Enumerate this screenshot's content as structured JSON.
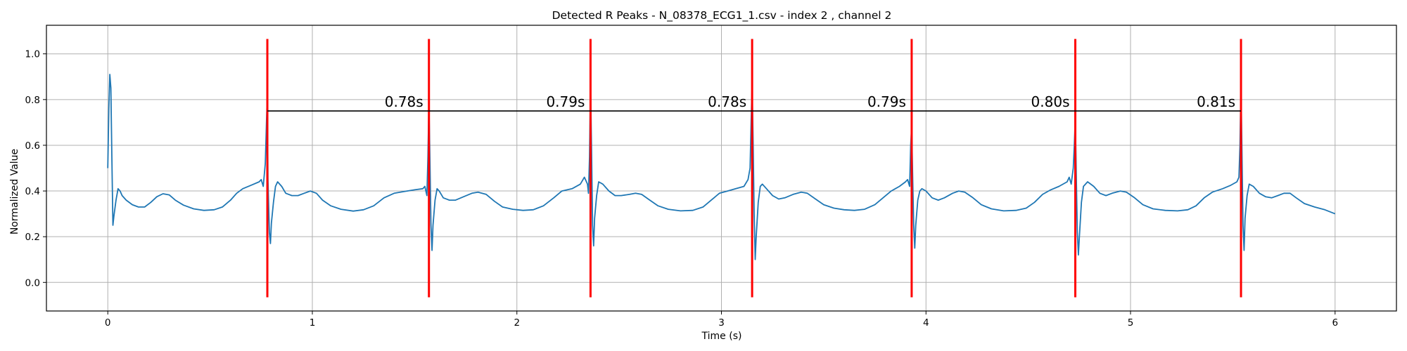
{
  "chart_data": {
    "type": "line",
    "title": "Detected R Peaks - N_08378_ECG1_1.csv - index 2 , channel 2",
    "xlabel": "Time (s)",
    "ylabel": "Normalized Value",
    "xlim": [
      -0.3,
      6.3
    ],
    "ylim": [
      -0.125,
      1.125
    ],
    "x_ticks": [
      "0",
      "1",
      "2",
      "3",
      "4",
      "5",
      "6"
    ],
    "y_ticks": [
      "0.0",
      "0.2",
      "0.4",
      "0.6",
      "0.8",
      "1.0"
    ],
    "grid": true,
    "colors": {
      "signal": "#1f77b4",
      "peaks": "#ff0000",
      "intervals": "#000000"
    },
    "r_peaks": [
      0.78,
      1.57,
      2.36,
      3.15,
      3.93,
      4.73,
      5.54
    ],
    "rr_intervals": [
      {
        "start": 0.78,
        "end": 1.57,
        "label": "0.78s"
      },
      {
        "start": 1.57,
        "end": 2.36,
        "label": "0.79s"
      },
      {
        "start": 2.36,
        "end": 3.15,
        "label": "0.78s"
      },
      {
        "start": 3.15,
        "end": 3.93,
        "label": "0.79s"
      },
      {
        "start": 3.93,
        "end": 4.73,
        "label": "0.80s"
      },
      {
        "start": 4.73,
        "end": 5.54,
        "label": "0.81s"
      }
    ],
    "interval_line_y": 0.75,
    "peak_marker_range": [
      -0.065,
      1.065
    ],
    "series": [
      {
        "values": [
          [
            0.0,
            0.5
          ],
          [
            0.005,
            0.76
          ],
          [
            0.01,
            0.91
          ],
          [
            0.015,
            0.85
          ],
          [
            0.02,
            0.55
          ],
          [
            0.025,
            0.25
          ],
          [
            0.03,
            0.29
          ],
          [
            0.04,
            0.36
          ],
          [
            0.05,
            0.41
          ],
          [
            0.06,
            0.4
          ],
          [
            0.07,
            0.38
          ],
          [
            0.09,
            0.36
          ],
          [
            0.12,
            0.34
          ],
          [
            0.15,
            0.33
          ],
          [
            0.18,
            0.33
          ],
          [
            0.21,
            0.35
          ],
          [
            0.24,
            0.375
          ],
          [
            0.27,
            0.388
          ],
          [
            0.3,
            0.383
          ],
          [
            0.33,
            0.36
          ],
          [
            0.37,
            0.338
          ],
          [
            0.42,
            0.322
          ],
          [
            0.47,
            0.315
          ],
          [
            0.52,
            0.318
          ],
          [
            0.56,
            0.33
          ],
          [
            0.6,
            0.36
          ],
          [
            0.63,
            0.39
          ],
          [
            0.66,
            0.41
          ],
          [
            0.7,
            0.425
          ],
          [
            0.74,
            0.44
          ],
          [
            0.75,
            0.45
          ],
          [
            0.76,
            0.42
          ],
          [
            0.77,
            0.52
          ],
          [
            0.775,
            0.68
          ],
          [
            0.78,
            0.83
          ],
          [
            0.783,
            0.45
          ],
          [
            0.79,
            0.22
          ],
          [
            0.795,
            0.17
          ],
          [
            0.8,
            0.26
          ],
          [
            0.81,
            0.35
          ],
          [
            0.82,
            0.42
          ],
          [
            0.83,
            0.44
          ],
          [
            0.85,
            0.42
          ],
          [
            0.87,
            0.39
          ],
          [
            0.9,
            0.38
          ],
          [
            0.93,
            0.38
          ],
          [
            0.96,
            0.39
          ],
          [
            0.99,
            0.4
          ],
          [
            1.02,
            0.39
          ],
          [
            1.05,
            0.36
          ],
          [
            1.09,
            0.335
          ],
          [
            1.14,
            0.32
          ],
          [
            1.2,
            0.312
          ],
          [
            1.25,
            0.318
          ],
          [
            1.3,
            0.335
          ],
          [
            1.35,
            0.37
          ],
          [
            1.4,
            0.39
          ],
          [
            1.45,
            0.398
          ],
          [
            1.5,
            0.405
          ],
          [
            1.54,
            0.41
          ],
          [
            1.55,
            0.42
          ],
          [
            1.56,
            0.38
          ],
          [
            1.565,
            0.55
          ],
          [
            1.57,
            0.79
          ],
          [
            1.575,
            0.52
          ],
          [
            1.58,
            0.25
          ],
          [
            1.585,
            0.14
          ],
          [
            1.59,
            0.25
          ],
          [
            1.6,
            0.36
          ],
          [
            1.61,
            0.41
          ],
          [
            1.62,
            0.4
          ],
          [
            1.64,
            0.37
          ],
          [
            1.67,
            0.36
          ],
          [
            1.7,
            0.36
          ],
          [
            1.74,
            0.375
          ],
          [
            1.78,
            0.39
          ],
          [
            1.81,
            0.395
          ],
          [
            1.85,
            0.385
          ],
          [
            1.89,
            0.355
          ],
          [
            1.93,
            0.33
          ],
          [
            1.98,
            0.32
          ],
          [
            2.03,
            0.315
          ],
          [
            2.08,
            0.318
          ],
          [
            2.13,
            0.335
          ],
          [
            2.18,
            0.37
          ],
          [
            2.22,
            0.4
          ],
          [
            2.27,
            0.41
          ],
          [
            2.31,
            0.43
          ],
          [
            2.33,
            0.46
          ],
          [
            2.345,
            0.43
          ],
          [
            2.35,
            0.39
          ],
          [
            2.355,
            0.55
          ],
          [
            2.36,
            0.86
          ],
          [
            2.365,
            0.58
          ],
          [
            2.37,
            0.25
          ],
          [
            2.375,
            0.16
          ],
          [
            2.38,
            0.28
          ],
          [
            2.39,
            0.38
          ],
          [
            2.4,
            0.44
          ],
          [
            2.42,
            0.43
          ],
          [
            2.45,
            0.4
          ],
          [
            2.48,
            0.38
          ],
          [
            2.51,
            0.38
          ],
          [
            2.55,
            0.385
          ],
          [
            2.58,
            0.39
          ],
          [
            2.61,
            0.385
          ],
          [
            2.65,
            0.36
          ],
          [
            2.69,
            0.335
          ],
          [
            2.74,
            0.32
          ],
          [
            2.8,
            0.313
          ],
          [
            2.86,
            0.315
          ],
          [
            2.91,
            0.33
          ],
          [
            2.95,
            0.36
          ],
          [
            2.99,
            0.39
          ],
          [
            3.03,
            0.4
          ],
          [
            3.07,
            0.41
          ],
          [
            3.11,
            0.42
          ],
          [
            3.13,
            0.45
          ],
          [
            3.14,
            0.5
          ],
          [
            3.145,
            0.7
          ],
          [
            3.15,
            0.87
          ],
          [
            3.155,
            0.6
          ],
          [
            3.16,
            0.3
          ],
          [
            3.165,
            0.1
          ],
          [
            3.17,
            0.2
          ],
          [
            3.18,
            0.35
          ],
          [
            3.19,
            0.42
          ],
          [
            3.2,
            0.43
          ],
          [
            3.22,
            0.41
          ],
          [
            3.25,
            0.38
          ],
          [
            3.28,
            0.365
          ],
          [
            3.31,
            0.37
          ],
          [
            3.35,
            0.385
          ],
          [
            3.39,
            0.395
          ],
          [
            3.42,
            0.39
          ],
          [
            3.46,
            0.365
          ],
          [
            3.5,
            0.34
          ],
          [
            3.55,
            0.325
          ],
          [
            3.6,
            0.318
          ],
          [
            3.65,
            0.315
          ],
          [
            3.7,
            0.32
          ],
          [
            3.75,
            0.34
          ],
          [
            3.79,
            0.37
          ],
          [
            3.83,
            0.4
          ],
          [
            3.87,
            0.42
          ],
          [
            3.9,
            0.44
          ],
          [
            3.91,
            0.45
          ],
          [
            3.92,
            0.42
          ],
          [
            3.925,
            0.6
          ],
          [
            3.93,
            0.68
          ],
          [
            3.935,
            0.45
          ],
          [
            3.94,
            0.25
          ],
          [
            3.945,
            0.15
          ],
          [
            3.95,
            0.25
          ],
          [
            3.96,
            0.36
          ],
          [
            3.97,
            0.4
          ],
          [
            3.98,
            0.41
          ],
          [
            4.0,
            0.4
          ],
          [
            4.03,
            0.37
          ],
          [
            4.06,
            0.36
          ],
          [
            4.09,
            0.37
          ],
          [
            4.13,
            0.39
          ],
          [
            4.16,
            0.4
          ],
          [
            4.19,
            0.395
          ],
          [
            4.23,
            0.37
          ],
          [
            4.27,
            0.34
          ],
          [
            4.32,
            0.322
          ],
          [
            4.38,
            0.313
          ],
          [
            4.44,
            0.315
          ],
          [
            4.49,
            0.325
          ],
          [
            4.53,
            0.35
          ],
          [
            4.57,
            0.385
          ],
          [
            4.61,
            0.405
          ],
          [
            4.65,
            0.42
          ],
          [
            4.69,
            0.44
          ],
          [
            4.7,
            0.46
          ],
          [
            4.71,
            0.43
          ],
          [
            4.72,
            0.5
          ],
          [
            4.725,
            0.6
          ],
          [
            4.73,
            0.72
          ],
          [
            4.735,
            0.45
          ],
          [
            4.74,
            0.22
          ],
          [
            4.745,
            0.12
          ],
          [
            4.75,
            0.2
          ],
          [
            4.76,
            0.35
          ],
          [
            4.77,
            0.42
          ],
          [
            4.79,
            0.44
          ],
          [
            4.82,
            0.42
          ],
          [
            4.85,
            0.39
          ],
          [
            4.88,
            0.38
          ],
          [
            4.91,
            0.39
          ],
          [
            4.95,
            0.4
          ],
          [
            4.98,
            0.395
          ],
          [
            5.02,
            0.37
          ],
          [
            5.06,
            0.34
          ],
          [
            5.11,
            0.322
          ],
          [
            5.17,
            0.315
          ],
          [
            5.23,
            0.313
          ],
          [
            5.28,
            0.318
          ],
          [
            5.32,
            0.335
          ],
          [
            5.36,
            0.37
          ],
          [
            5.4,
            0.395
          ],
          [
            5.45,
            0.41
          ],
          [
            5.49,
            0.425
          ],
          [
            5.52,
            0.44
          ],
          [
            5.53,
            0.46
          ],
          [
            5.535,
            0.6
          ],
          [
            5.54,
            0.87
          ],
          [
            5.545,
            0.55
          ],
          [
            5.55,
            0.25
          ],
          [
            5.555,
            0.14
          ],
          [
            5.56,
            0.28
          ],
          [
            5.57,
            0.38
          ],
          [
            5.58,
            0.43
          ],
          [
            5.6,
            0.42
          ],
          [
            5.63,
            0.39
          ],
          [
            5.66,
            0.375
          ],
          [
            5.69,
            0.37
          ],
          [
            5.72,
            0.38
          ],
          [
            5.75,
            0.39
          ],
          [
            5.78,
            0.39
          ],
          [
            5.81,
            0.37
          ],
          [
            5.85,
            0.345
          ],
          [
            5.9,
            0.33
          ],
          [
            5.95,
            0.318
          ],
          [
            6.0,
            0.3
          ]
        ]
      }
    ]
  }
}
